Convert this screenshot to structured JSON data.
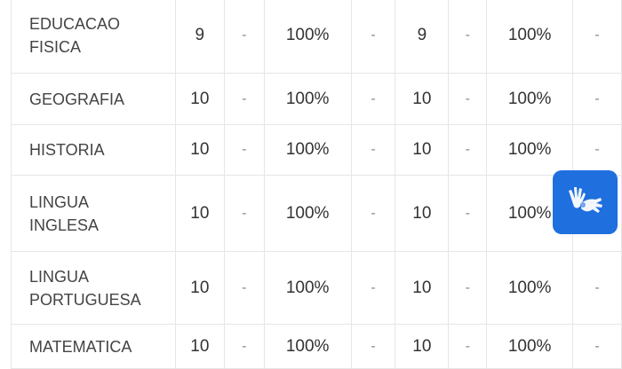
{
  "rows": [
    {
      "subject": "EDUCACAO FISICA",
      "c1": "9",
      "c2": "-",
      "c3": "100%",
      "c4": "-",
      "c5": "9",
      "c6": "-",
      "c7": "100%",
      "c8": "-"
    },
    {
      "subject": "GEOGRAFIA",
      "c1": "10",
      "c2": "-",
      "c3": "100%",
      "c4": "-",
      "c5": "10",
      "c6": "-",
      "c7": "100%",
      "c8": "-"
    },
    {
      "subject": "HISTORIA",
      "c1": "10",
      "c2": "-",
      "c3": "100%",
      "c4": "-",
      "c5": "10",
      "c6": "-",
      "c7": "100%",
      "c8": "-"
    },
    {
      "subject": "LINGUA INGLESA",
      "c1": "10",
      "c2": "-",
      "c3": "100%",
      "c4": "-",
      "c5": "10",
      "c6": "-",
      "c7": "100%",
      "c8": "-"
    },
    {
      "subject": "LINGUA PORTUGUESA",
      "c1": "10",
      "c2": "-",
      "c3": "100%",
      "c4": "-",
      "c5": "10",
      "c6": "-",
      "c7": "100%",
      "c8": "-"
    },
    {
      "subject": "MATEMATICA",
      "c1": "10",
      "c2": "-",
      "c3": "100%",
      "c4": "-",
      "c5": "10",
      "c6": "-",
      "c7": "100%",
      "c8": "-"
    }
  ],
  "accessibility": {
    "icon": "sign-language-hands-icon",
    "color": "#1f6fde"
  }
}
